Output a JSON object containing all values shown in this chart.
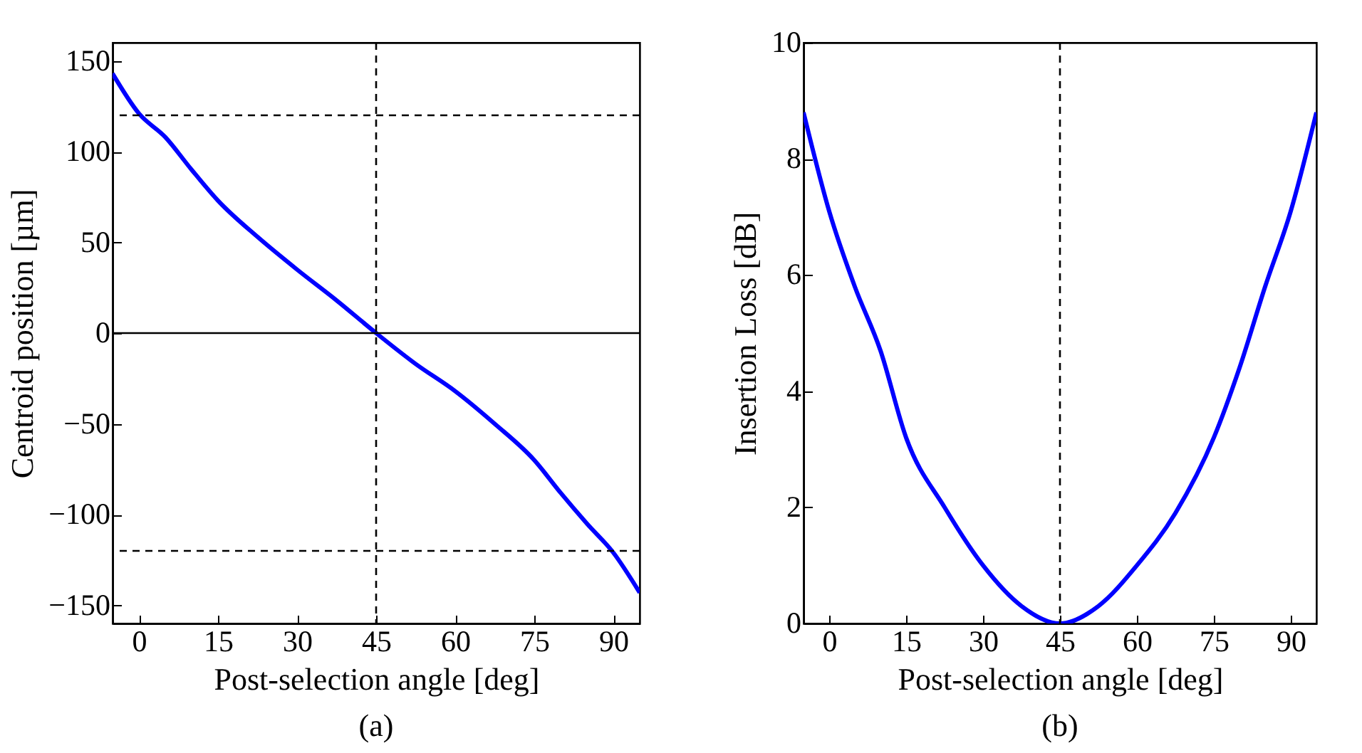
{
  "chart_data": [
    {
      "type": "line",
      "xlabel": "Post-selection angle [deg]",
      "ylabel": "Centroid position [µm]",
      "annotations": [
        "(a)"
      ],
      "x": [
        -5,
        0,
        5,
        10,
        15,
        22.5,
        30,
        37.5,
        45,
        52.5,
        60,
        67.5,
        75,
        80,
        85,
        90,
        95
      ],
      "series": [
        {
          "color": "#0000ff",
          "values": [
            143,
            121,
            108,
            90,
            73,
            53,
            35,
            18,
            0,
            -17,
            -32,
            -50,
            -70,
            -88,
            -105,
            -121,
            -143
          ]
        }
      ],
      "xlim": [
        -5,
        95
      ],
      "xticks": [
        0,
        15,
        30,
        45,
        60,
        75,
        90
      ],
      "ylim": [
        -160,
        160
      ],
      "yticks": [
        -150,
        -100,
        -50,
        0,
        50,
        100,
        150
      ],
      "ref_lines": [
        {
          "axis": "y",
          "value": 120,
          "color": "#000000",
          "line_style": "dashed"
        },
        {
          "axis": "y",
          "value": -120,
          "color": "#000000",
          "line_style": "dashed"
        },
        {
          "axis": "x",
          "value": 45,
          "color": "#000000",
          "line_style": "dashed"
        },
        {
          "axis": "y",
          "value": 0,
          "color": "#000000",
          "line_style": "solid"
        }
      ]
    },
    {
      "type": "line",
      "xlabel": "Post-selection angle [deg]",
      "ylabel": "Insertion Loss [dB]",
      "annotations": [
        "(b)"
      ],
      "x": [
        -5,
        0,
        5,
        10,
        15,
        22.5,
        30,
        37.5,
        45,
        52.5,
        60,
        67.5,
        75,
        80,
        85,
        90,
        95
      ],
      "series": [
        {
          "color": "#0000ff",
          "values": [
            8.8,
            7.1,
            5.8,
            4.7,
            3.2,
            2.0,
            1.0,
            0.3,
            0.0,
            0.3,
            1.0,
            1.9,
            3.2,
            4.4,
            5.8,
            7.1,
            8.8
          ]
        }
      ],
      "xlim": [
        -5,
        95
      ],
      "xticks": [
        0,
        15,
        30,
        45,
        60,
        75,
        90
      ],
      "ylim": [
        0,
        10
      ],
      "yticks": [
        0,
        2,
        4,
        6,
        8,
        10
      ],
      "ref_lines": [
        {
          "axis": "x",
          "value": 45,
          "color": "#000000",
          "line_style": "dashed"
        }
      ]
    }
  ]
}
